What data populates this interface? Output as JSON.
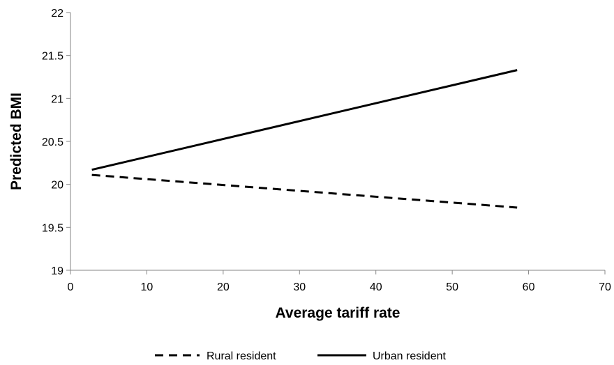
{
  "chart_data": {
    "type": "line",
    "title": "",
    "xlabel": "Average tariff rate",
    "ylabel": "Predicted BMI",
    "xlim": [
      0,
      70
    ],
    "ylim": [
      19,
      22
    ],
    "x_ticks": [
      0,
      10,
      20,
      30,
      40,
      50,
      60,
      70
    ],
    "y_ticks": [
      19,
      19.5,
      20,
      20.5,
      21,
      21.5,
      22
    ],
    "grid": false,
    "legend_position": "bottom",
    "series": [
      {
        "name": "Rural resident",
        "style": "dashed",
        "color": "#000000",
        "x": [
          2.8,
          58.5
        ],
        "y": [
          20.11,
          19.73
        ]
      },
      {
        "name": "Urban resident",
        "style": "solid",
        "color": "#000000",
        "x": [
          2.8,
          58.5
        ],
        "y": [
          20.17,
          21.33
        ]
      }
    ]
  }
}
